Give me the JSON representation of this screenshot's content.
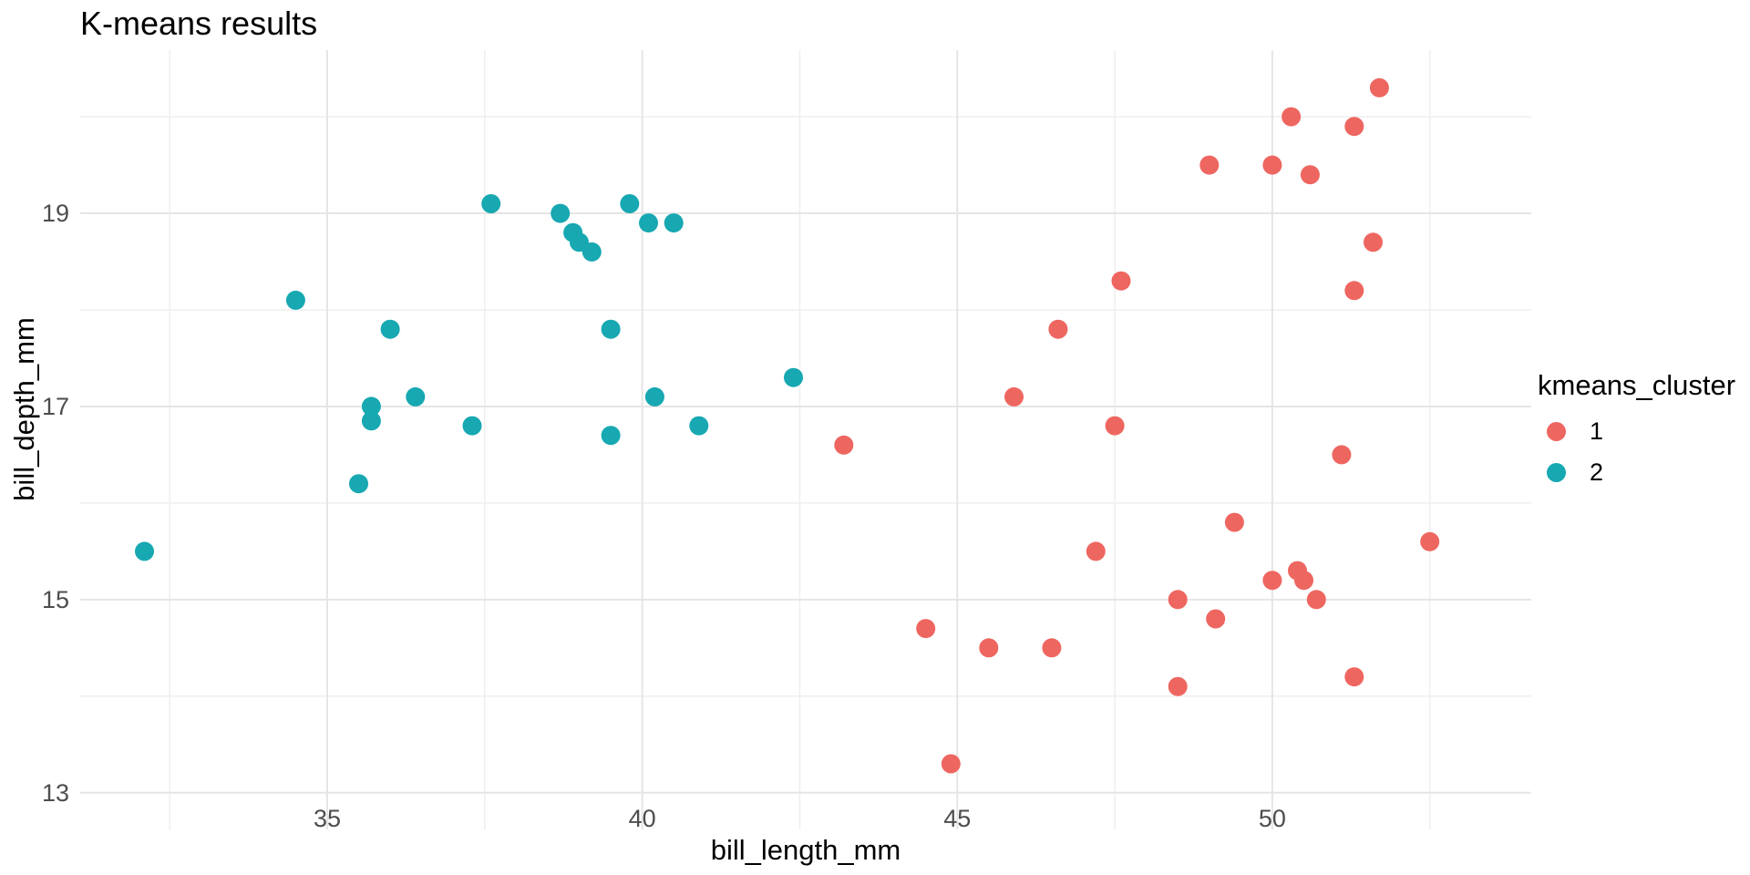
{
  "title": "K-means results",
  "chart_data": {
    "type": "scatter",
    "title": "K-means results",
    "xlabel": "bill_length_mm",
    "ylabel": "bill_depth_mm",
    "legend_title": "kmeans_cluster",
    "legend_position": "right",
    "grid": true,
    "xlim": [
      31.08,
      54.11
    ],
    "ylim": [
      12.62,
      20.69
    ],
    "x_major_ticks": [
      35,
      40,
      45,
      50
    ],
    "x_minor_gridlines": [
      32.5,
      37.5,
      42.5,
      47.5,
      52.5
    ],
    "y_major_ticks": [
      13,
      15,
      17,
      19
    ],
    "y_minor_gridlines": [
      14,
      16,
      18,
      20
    ],
    "series": [
      {
        "name": "1",
        "color": "#EE6660",
        "points": [
          [
            43.2,
            16.6
          ],
          [
            44.5,
            14.7
          ],
          [
            44.9,
            13.3
          ],
          [
            45.5,
            14.5
          ],
          [
            45.9,
            17.1
          ],
          [
            46.5,
            14.5
          ],
          [
            46.6,
            17.8
          ],
          [
            47.2,
            15.5
          ],
          [
            47.5,
            16.8
          ],
          [
            47.6,
            18.3
          ],
          [
            48.5,
            15.0
          ],
          [
            48.5,
            14.1
          ],
          [
            49.0,
            19.5
          ],
          [
            49.1,
            14.8
          ],
          [
            49.4,
            15.8
          ],
          [
            50.0,
            19.5
          ],
          [
            50.0,
            15.2
          ],
          [
            50.3,
            20.0
          ],
          [
            50.4,
            15.3
          ],
          [
            50.5,
            15.2
          ],
          [
            50.6,
            19.4
          ],
          [
            50.7,
            15.0
          ],
          [
            51.1,
            16.5
          ],
          [
            51.3,
            19.9
          ],
          [
            51.3,
            18.2
          ],
          [
            51.3,
            14.2
          ],
          [
            51.6,
            18.7
          ],
          [
            51.7,
            20.3
          ],
          [
            52.5,
            15.6
          ]
        ]
      },
      {
        "name": "2",
        "color": "#17A8B2",
        "points": [
          [
            32.1,
            15.5
          ],
          [
            34.5,
            18.1
          ],
          [
            35.5,
            16.2
          ],
          [
            35.7,
            17.0
          ],
          [
            35.7,
            16.85
          ],
          [
            36.0,
            17.8
          ],
          [
            36.4,
            17.1
          ],
          [
            37.3,
            16.8
          ],
          [
            37.6,
            19.1
          ],
          [
            38.7,
            19.0
          ],
          [
            38.9,
            18.8
          ],
          [
            39.0,
            18.7
          ],
          [
            39.2,
            18.6
          ],
          [
            39.5,
            17.8
          ],
          [
            39.5,
            16.7
          ],
          [
            39.8,
            19.1
          ],
          [
            40.1,
            18.9
          ],
          [
            40.2,
            17.1
          ],
          [
            40.5,
            18.9
          ],
          [
            40.9,
            16.8
          ],
          [
            42.4,
            17.3
          ]
        ]
      }
    ],
    "colors": {
      "cluster_1": "#EE6660",
      "cluster_2": "#17A8B2",
      "grid_major": "#E5E5E5",
      "grid_minor": "#EFEFEF",
      "tick_text": "#4d4d4d"
    }
  }
}
